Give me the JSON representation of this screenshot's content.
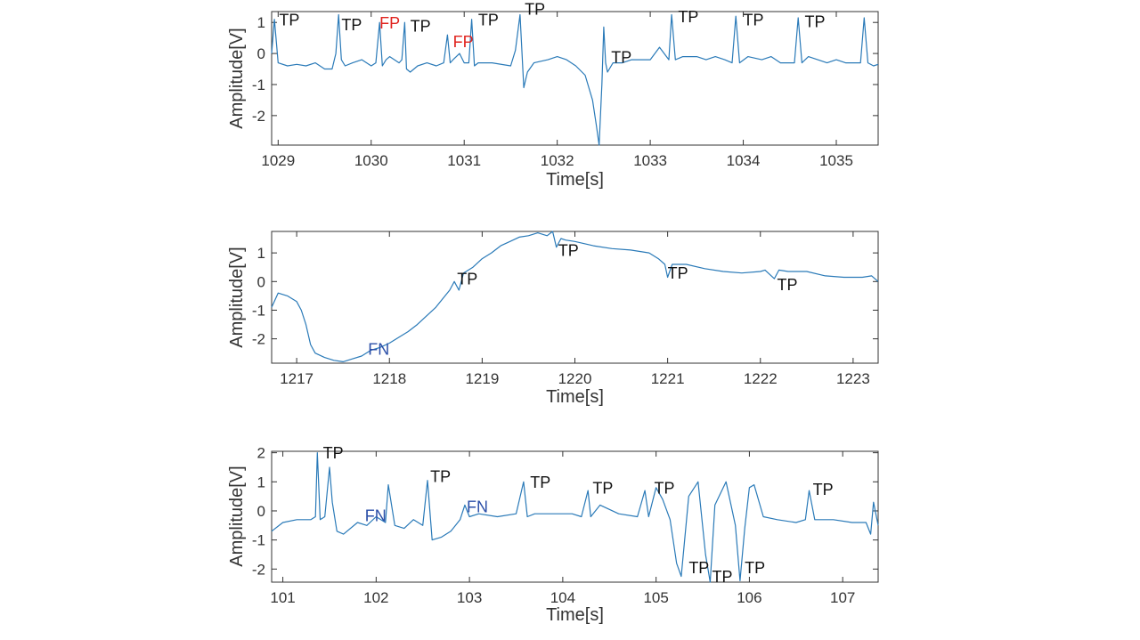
{
  "colors": {
    "signal": "#2a7ab8",
    "axis": "#333333",
    "tp": "#111111",
    "fp": "#e0231e",
    "fn": "#2b4fa8"
  },
  "chart_data": [
    {
      "type": "line",
      "xlabel": "Time[s]",
      "ylabel": "Amplitude[V]",
      "xlim": [
        1028.93,
        1035.45
      ],
      "ylim": [
        -2.95,
        1.35
      ],
      "xticks": [
        1029,
        1030,
        1031,
        1032,
        1033,
        1034,
        1035
      ],
      "yticks": [
        -2,
        -1,
        0,
        1
      ],
      "grid": false,
      "series": [
        {
          "x": [
            1028.93,
            1028.96,
            1029.0,
            1029.1,
            1029.2,
            1029.3,
            1029.4,
            1029.5,
            1029.58,
            1029.62,
            1029.65,
            1029.68,
            1029.72,
            1029.8,
            1029.9,
            1030.0,
            1030.05,
            1030.09,
            1030.12,
            1030.16,
            1030.2,
            1030.3,
            1030.33,
            1030.36,
            1030.38,
            1030.42,
            1030.5,
            1030.6,
            1030.7,
            1030.78,
            1030.82,
            1030.85,
            1030.88,
            1030.95,
            1031.0,
            1031.05,
            1031.08,
            1031.11,
            1031.15,
            1031.3,
            1031.5,
            1031.55,
            1031.6,
            1031.64,
            1031.68,
            1031.75,
            1031.9,
            1032.0,
            1032.1,
            1032.2,
            1032.3,
            1032.38,
            1032.42,
            1032.45,
            1032.48,
            1032.5,
            1032.52,
            1032.54,
            1032.6,
            1032.7,
            1032.8,
            1033.0,
            1033.1,
            1033.2,
            1033.23,
            1033.27,
            1033.35,
            1033.5,
            1033.6,
            1033.7,
            1033.8,
            1033.88,
            1033.92,
            1033.96,
            1034.05,
            1034.2,
            1034.3,
            1034.4,
            1034.5,
            1034.55,
            1034.59,
            1034.63,
            1034.7,
            1034.9,
            1035.0,
            1035.1,
            1035.2,
            1035.26,
            1035.3,
            1035.34,
            1035.4,
            1035.45
          ],
          "y": [
            0.0,
            1.1,
            -0.3,
            -0.4,
            -0.35,
            -0.4,
            -0.3,
            -0.5,
            -0.5,
            0.0,
            1.25,
            -0.2,
            -0.4,
            -0.3,
            -0.2,
            -0.4,
            -0.3,
            1.0,
            -0.4,
            -0.2,
            -0.1,
            -0.3,
            -0.2,
            1.0,
            -0.5,
            -0.6,
            -0.4,
            -0.3,
            -0.4,
            -0.3,
            0.6,
            -0.3,
            -0.2,
            0.0,
            -0.3,
            -0.3,
            1.1,
            -0.4,
            -0.3,
            -0.3,
            -0.4,
            0.1,
            1.25,
            -1.1,
            -0.6,
            -0.3,
            -0.2,
            -0.1,
            -0.2,
            -0.4,
            -0.7,
            -1.5,
            -2.3,
            -2.95,
            -1.0,
            0.85,
            -0.3,
            -0.6,
            -0.3,
            -0.3,
            -0.2,
            -0.2,
            0.2,
            -0.2,
            1.25,
            -0.2,
            -0.1,
            -0.1,
            -0.2,
            -0.1,
            -0.2,
            -0.3,
            1.2,
            -0.3,
            -0.1,
            -0.2,
            -0.1,
            -0.3,
            -0.3,
            -0.3,
            1.15,
            -0.3,
            -0.1,
            -0.3,
            -0.2,
            -0.3,
            -0.3,
            -0.3,
            1.15,
            -0.3,
            -0.4,
            -0.35
          ]
        }
      ],
      "annotations": [
        {
          "text": "TP",
          "x": 1029.01,
          "y": 0.9,
          "kind": "tp"
        },
        {
          "text": "TP",
          "x": 1029.68,
          "y": 0.75,
          "kind": "tp"
        },
        {
          "text": "FP",
          "x": 1030.09,
          "y": 0.8,
          "kind": "fp"
        },
        {
          "text": "TP",
          "x": 1030.42,
          "y": 0.7,
          "kind": "tp"
        },
        {
          "text": "FP",
          "x": 1030.88,
          "y": 0.2,
          "kind": "fp"
        },
        {
          "text": "TP",
          "x": 1031.15,
          "y": 0.9,
          "kind": "tp"
        },
        {
          "text": "TP",
          "x": 1031.65,
          "y": 1.25,
          "kind": "tp"
        },
        {
          "text": "TP",
          "x": 1032.58,
          "y": -0.3,
          "kind": "tp"
        },
        {
          "text": "TP",
          "x": 1033.3,
          "y": 1.0,
          "kind": "tp"
        },
        {
          "text": "TP",
          "x": 1034.0,
          "y": 0.9,
          "kind": "tp"
        },
        {
          "text": "TP",
          "x": 1034.66,
          "y": 0.85,
          "kind": "tp"
        }
      ]
    },
    {
      "type": "line",
      "xlabel": "Time[s]",
      "ylabel": "Amplitude[V]",
      "xlim": [
        1216.73,
        1223.27
      ],
      "ylim": [
        -2.85,
        1.75
      ],
      "xticks": [
        1217,
        1218,
        1219,
        1220,
        1221,
        1222,
        1223
      ],
      "yticks": [
        -2,
        -1,
        0,
        1
      ],
      "grid": false,
      "series": [
        {
          "x": [
            1216.73,
            1216.8,
            1216.9,
            1217.0,
            1217.05,
            1217.1,
            1217.15,
            1217.2,
            1217.3,
            1217.4,
            1217.5,
            1217.6,
            1217.7,
            1217.8,
            1217.9,
            1218.0,
            1218.1,
            1218.2,
            1218.3,
            1218.4,
            1218.5,
            1218.6,
            1218.65,
            1218.7,
            1218.75,
            1218.8,
            1218.9,
            1219.0,
            1219.1,
            1219.2,
            1219.3,
            1219.4,
            1219.5,
            1219.6,
            1219.7,
            1219.76,
            1219.8,
            1219.85,
            1219.9,
            1220.0,
            1220.2,
            1220.4,
            1220.6,
            1220.8,
            1220.9,
            1220.97,
            1221.0,
            1221.05,
            1221.2,
            1221.4,
            1221.6,
            1221.8,
            1222.0,
            1222.05,
            1222.15,
            1222.2,
            1222.3,
            1222.5,
            1222.7,
            1222.9,
            1223.1,
            1223.2,
            1223.27
          ],
          "y": [
            -0.9,
            -0.4,
            -0.5,
            -0.7,
            -1.0,
            -1.5,
            -2.2,
            -2.5,
            -2.65,
            -2.75,
            -2.8,
            -2.7,
            -2.6,
            -2.4,
            -2.3,
            -2.15,
            -1.95,
            -1.75,
            -1.5,
            -1.2,
            -0.9,
            -0.5,
            -0.3,
            0.0,
            -0.3,
            0.3,
            0.5,
            0.8,
            1.0,
            1.25,
            1.4,
            1.55,
            1.6,
            1.7,
            1.6,
            1.75,
            1.2,
            1.5,
            1.45,
            1.4,
            1.25,
            1.15,
            1.1,
            1.0,
            0.8,
            0.6,
            0.15,
            0.6,
            0.6,
            0.45,
            0.35,
            0.3,
            0.35,
            0.4,
            0.1,
            0.4,
            0.35,
            0.35,
            0.2,
            0.15,
            0.15,
            0.2,
            0.0
          ]
        }
      ],
      "annotations": [
        {
          "text": "TP",
          "x": 1218.73,
          "y": -0.1,
          "kind": "tp"
        },
        {
          "text": "TP",
          "x": 1219.82,
          "y": 0.9,
          "kind": "tp"
        },
        {
          "text": "TP",
          "x": 1221.0,
          "y": 0.1,
          "kind": "tp"
        },
        {
          "text": "TP",
          "x": 1222.18,
          "y": -0.3,
          "kind": "tp"
        },
        {
          "text": "FN",
          "x": 1217.77,
          "y": -2.55,
          "kind": "fn"
        }
      ]
    },
    {
      "type": "line",
      "xlabel": "Time[s]",
      "ylabel": "Amplitude[V]",
      "xlim": [
        100.88,
        107.38
      ],
      "ylim": [
        -2.45,
        2.05
      ],
      "xticks": [
        101,
        102,
        103,
        104,
        105,
        106,
        107
      ],
      "yticks": [
        -2,
        -1,
        0,
        1,
        2
      ],
      "grid": false,
      "series": [
        {
          "x": [
            100.88,
            101.0,
            101.15,
            101.3,
            101.35,
            101.37,
            101.4,
            101.45,
            101.5,
            101.53,
            101.58,
            101.65,
            101.8,
            101.9,
            102.0,
            102.1,
            102.13,
            102.2,
            102.3,
            102.4,
            102.5,
            102.55,
            102.6,
            102.7,
            102.8,
            102.9,
            102.95,
            103.0,
            103.1,
            103.3,
            103.5,
            103.58,
            103.62,
            103.7,
            103.9,
            104.1,
            104.2,
            104.27,
            104.3,
            104.4,
            104.6,
            104.8,
            104.88,
            104.92,
            105.0,
            105.07,
            105.15,
            105.22,
            105.27,
            105.35,
            105.45,
            105.53,
            105.58,
            105.63,
            105.75,
            105.85,
            105.9,
            105.95,
            106.0,
            106.05,
            106.15,
            106.3,
            106.5,
            106.6,
            106.64,
            106.7,
            106.9,
            107.1,
            107.25,
            107.3,
            107.33,
            107.38
          ],
          "y": [
            -0.7,
            -0.4,
            -0.3,
            -0.3,
            -0.2,
            2.0,
            -0.3,
            -0.2,
            1.5,
            0.3,
            -0.7,
            -0.8,
            -0.4,
            -0.5,
            -0.2,
            -0.4,
            0.9,
            -0.5,
            -0.6,
            -0.3,
            -0.5,
            1.05,
            -1.0,
            -0.9,
            -0.7,
            -0.3,
            0.2,
            -0.2,
            -0.1,
            -0.2,
            -0.1,
            1.0,
            -0.2,
            -0.1,
            -0.1,
            -0.1,
            -0.2,
            0.7,
            -0.2,
            0.2,
            -0.1,
            -0.2,
            0.7,
            -0.2,
            0.8,
            0.4,
            -0.3,
            -1.8,
            -2.25,
            0.5,
            1.0,
            -1.5,
            -2.45,
            0.2,
            1.0,
            -0.5,
            -2.4,
            -0.6,
            0.8,
            0.9,
            -0.2,
            -0.3,
            -0.4,
            -0.3,
            0.7,
            -0.3,
            -0.3,
            -0.4,
            -0.4,
            -0.8,
            0.3,
            -0.5
          ]
        }
      ],
      "annotations": [
        {
          "text": "TP",
          "x": 101.43,
          "y": 1.8,
          "kind": "tp"
        },
        {
          "text": "FN",
          "x": 101.88,
          "y": -0.35,
          "kind": "fn"
        },
        {
          "text": "TP",
          "x": 102.58,
          "y": 1.0,
          "kind": "tp"
        },
        {
          "text": "FN",
          "x": 102.97,
          "y": -0.05,
          "kind": "fn"
        },
        {
          "text": "TP",
          "x": 103.65,
          "y": 0.8,
          "kind": "tp"
        },
        {
          "text": "TP",
          "x": 104.32,
          "y": 0.6,
          "kind": "tp"
        },
        {
          "text": "TP",
          "x": 104.98,
          "y": 0.6,
          "kind": "tp"
        },
        {
          "text": "TP",
          "x": 106.68,
          "y": 0.55,
          "kind": "tp"
        },
        {
          "text": "TP",
          "x": 105.35,
          "y": -2.15,
          "kind": "tp"
        },
        {
          "text": "TP",
          "x": 105.6,
          "y": -2.45,
          "kind": "tp"
        },
        {
          "text": "TP",
          "x": 105.95,
          "y": -2.15,
          "kind": "tp"
        }
      ]
    }
  ]
}
